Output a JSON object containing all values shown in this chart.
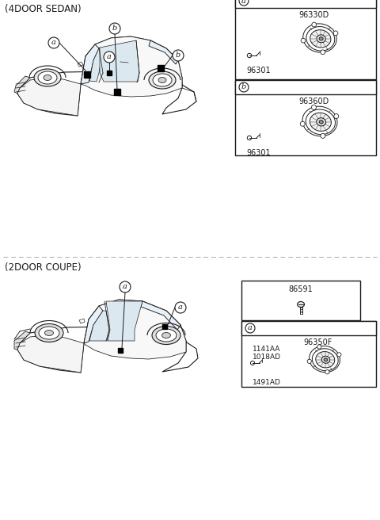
{
  "title_top": "(4DOOR SEDAN)",
  "title_bottom": "(2DOOR COUPE)",
  "bg_color": "#ffffff",
  "line_color": "#1a1a1a",
  "gray_light": "#e8e8e8",
  "gray_mid": "#cccccc",
  "dashed_color": "#999999",
  "label_a": "a",
  "label_b": "b",
  "sedan_box1_label": "a",
  "sedan_box1_code1": "96330D",
  "sedan_box1_code2": "96301",
  "sedan_box2_label": "b",
  "sedan_box2_code1": "96360D",
  "sedan_box2_code2": "96301",
  "coupe_screw_code": "86591",
  "coupe_box_label": "a",
  "coupe_box_code1": "96350F",
  "coupe_box_code2": "1141AA",
  "coupe_box_code3": "1018AD",
  "coupe_box_code4": "1491AD",
  "font_size_title": 8.5,
  "font_size_label": 7,
  "font_size_code": 7,
  "font_size_small": 6.5
}
